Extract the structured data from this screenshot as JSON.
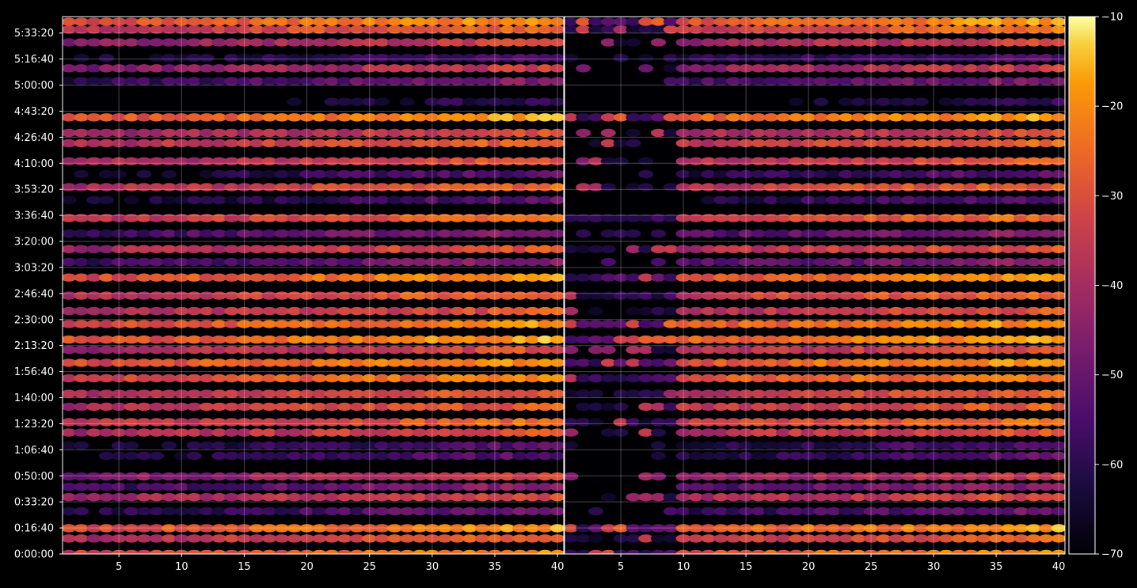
{
  "chart_data": {
    "type": "heatmap",
    "title": "",
    "xlabel": "",
    "ylabel": "",
    "panels": [
      {
        "name": "",
        "x_range": [
          1,
          40
        ],
        "x_ticks": [
          5,
          10,
          15,
          20,
          25,
          30,
          35,
          40
        ]
      },
      {
        "name": "",
        "x_range": [
          1,
          40
        ],
        "x_ticks": [
          5,
          10,
          15,
          20,
          25,
          30,
          35,
          40
        ]
      }
    ],
    "y_range_seconds": [
      0,
      20800
    ],
    "y_ticks": [
      "0:00:00",
      "0:16:40",
      "0:33:20",
      "0:50:00",
      "1:06:40",
      "1:23:20",
      "1:40:00",
      "1:56:40",
      "2:13:20",
      "2:30:00",
      "2:46:40",
      "3:03:20",
      "3:20:00",
      "3:36:40",
      "3:53:20",
      "4:10:00",
      "4:26:40",
      "4:43:20",
      "5:00:00",
      "5:16:40",
      "5:33:20"
    ],
    "grid": true,
    "colormap": "inferno",
    "colorbar": {
      "min": -70,
      "max": -10,
      "ticks": [
        "−10",
        "−20",
        "−30",
        "−40",
        "−50",
        "−60",
        "−70"
      ]
    },
    "rows_seconds": [
      0,
      600,
      1000,
      1650,
      2200,
      2600,
      3000,
      3800,
      4200,
      4700,
      5100,
      5700,
      6200,
      6800,
      7400,
      7900,
      8300,
      8900,
      9400,
      10000,
      10700,
      11300,
      11800,
      12400,
      13000,
      13700,
      14200,
      14700,
      15200,
      15900,
      16300,
      16900,
      17500,
      18300,
      18800,
      19200,
      19800,
      20300,
      20600
    ],
    "rows_peak_db": [
      -16,
      -22,
      -14,
      -45,
      -26,
      -40,
      -30,
      -48,
      -48,
      -24,
      -20,
      -22,
      -22,
      -16,
      -14,
      -25,
      -13,
      -14,
      -24,
      -20,
      -14,
      -40,
      -24,
      -40,
      -20,
      -48,
      -22,
      -48,
      -24,
      -22,
      -26,
      -13,
      -55,
      -42,
      -30,
      -48,
      -28,
      -20,
      -14
    ],
    "background_db": -70,
    "accent_colors": {
      "low": "#000004",
      "mid": "#b63679",
      "high": "#fcffa4"
    }
  }
}
